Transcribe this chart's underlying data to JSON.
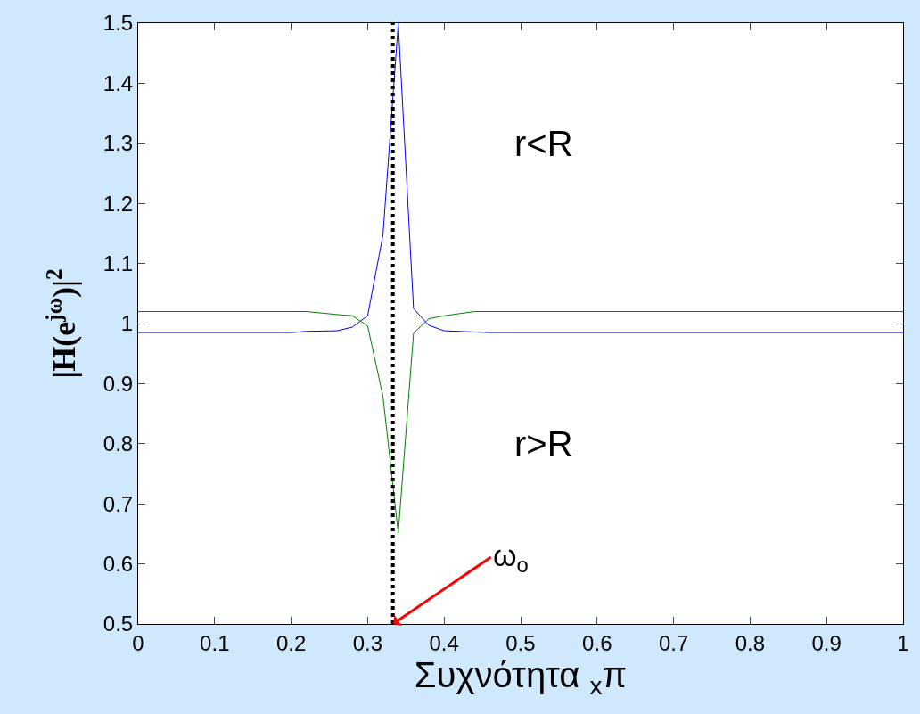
{
  "chart_data": {
    "type": "line",
    "xlabel": "Συχνότητα $_{x}$π",
    "ylabel": "|H(e$^{jω}$)|$^{2}$",
    "xlim": [
      0,
      1
    ],
    "xticks": [
      0,
      0.1,
      0.2,
      0.3,
      0.4,
      0.5,
      0.6,
      0.7,
      0.8,
      0.9,
      1
    ],
    "ylim": [
      0.5,
      1.5
    ],
    "yticks": [
      0.5,
      0.6,
      0.7,
      0.8,
      0.9,
      1,
      1.1,
      1.2,
      1.3,
      1.4,
      1.5
    ],
    "marker": "none",
    "line_style": "solid",
    "series": [
      {
        "color": "#0000ff",
        "x": [
          0,
          0.2,
          0.22,
          0.26,
          0.28,
          0.3,
          0.32,
          0.34,
          0.36,
          0.38,
          0.4,
          0.44,
          0.46,
          1
        ],
        "values": [
          0.985,
          0.985,
          0.987,
          0.988,
          0.994,
          1.013,
          1.147,
          1.5,
          1.025,
          0.997,
          0.988,
          0.986,
          0.985,
          0.985
        ]
      },
      {
        "color": "#008000",
        "x": [
          0,
          0.22,
          0.26,
          0.28,
          0.3,
          0.32,
          0.34,
          0.36,
          0.38,
          0.4,
          0.44,
          1
        ],
        "values": [
          1.02,
          1.02,
          1.015,
          1.013,
          0.996,
          0.879,
          0.651,
          0.984,
          1.008,
          1.013,
          1.02,
          1.02
        ]
      }
    ],
    "ref_lines": [
      {
        "axis": "x",
        "value": 0.333,
        "color": "#000000",
        "line_style": "dotted"
      }
    ],
    "annotations": [
      "r<R",
      "r>R",
      {
        "text": "ω$_{o}$",
        "x": 0.333,
        "y": 0.5
      }
    ]
  }
}
